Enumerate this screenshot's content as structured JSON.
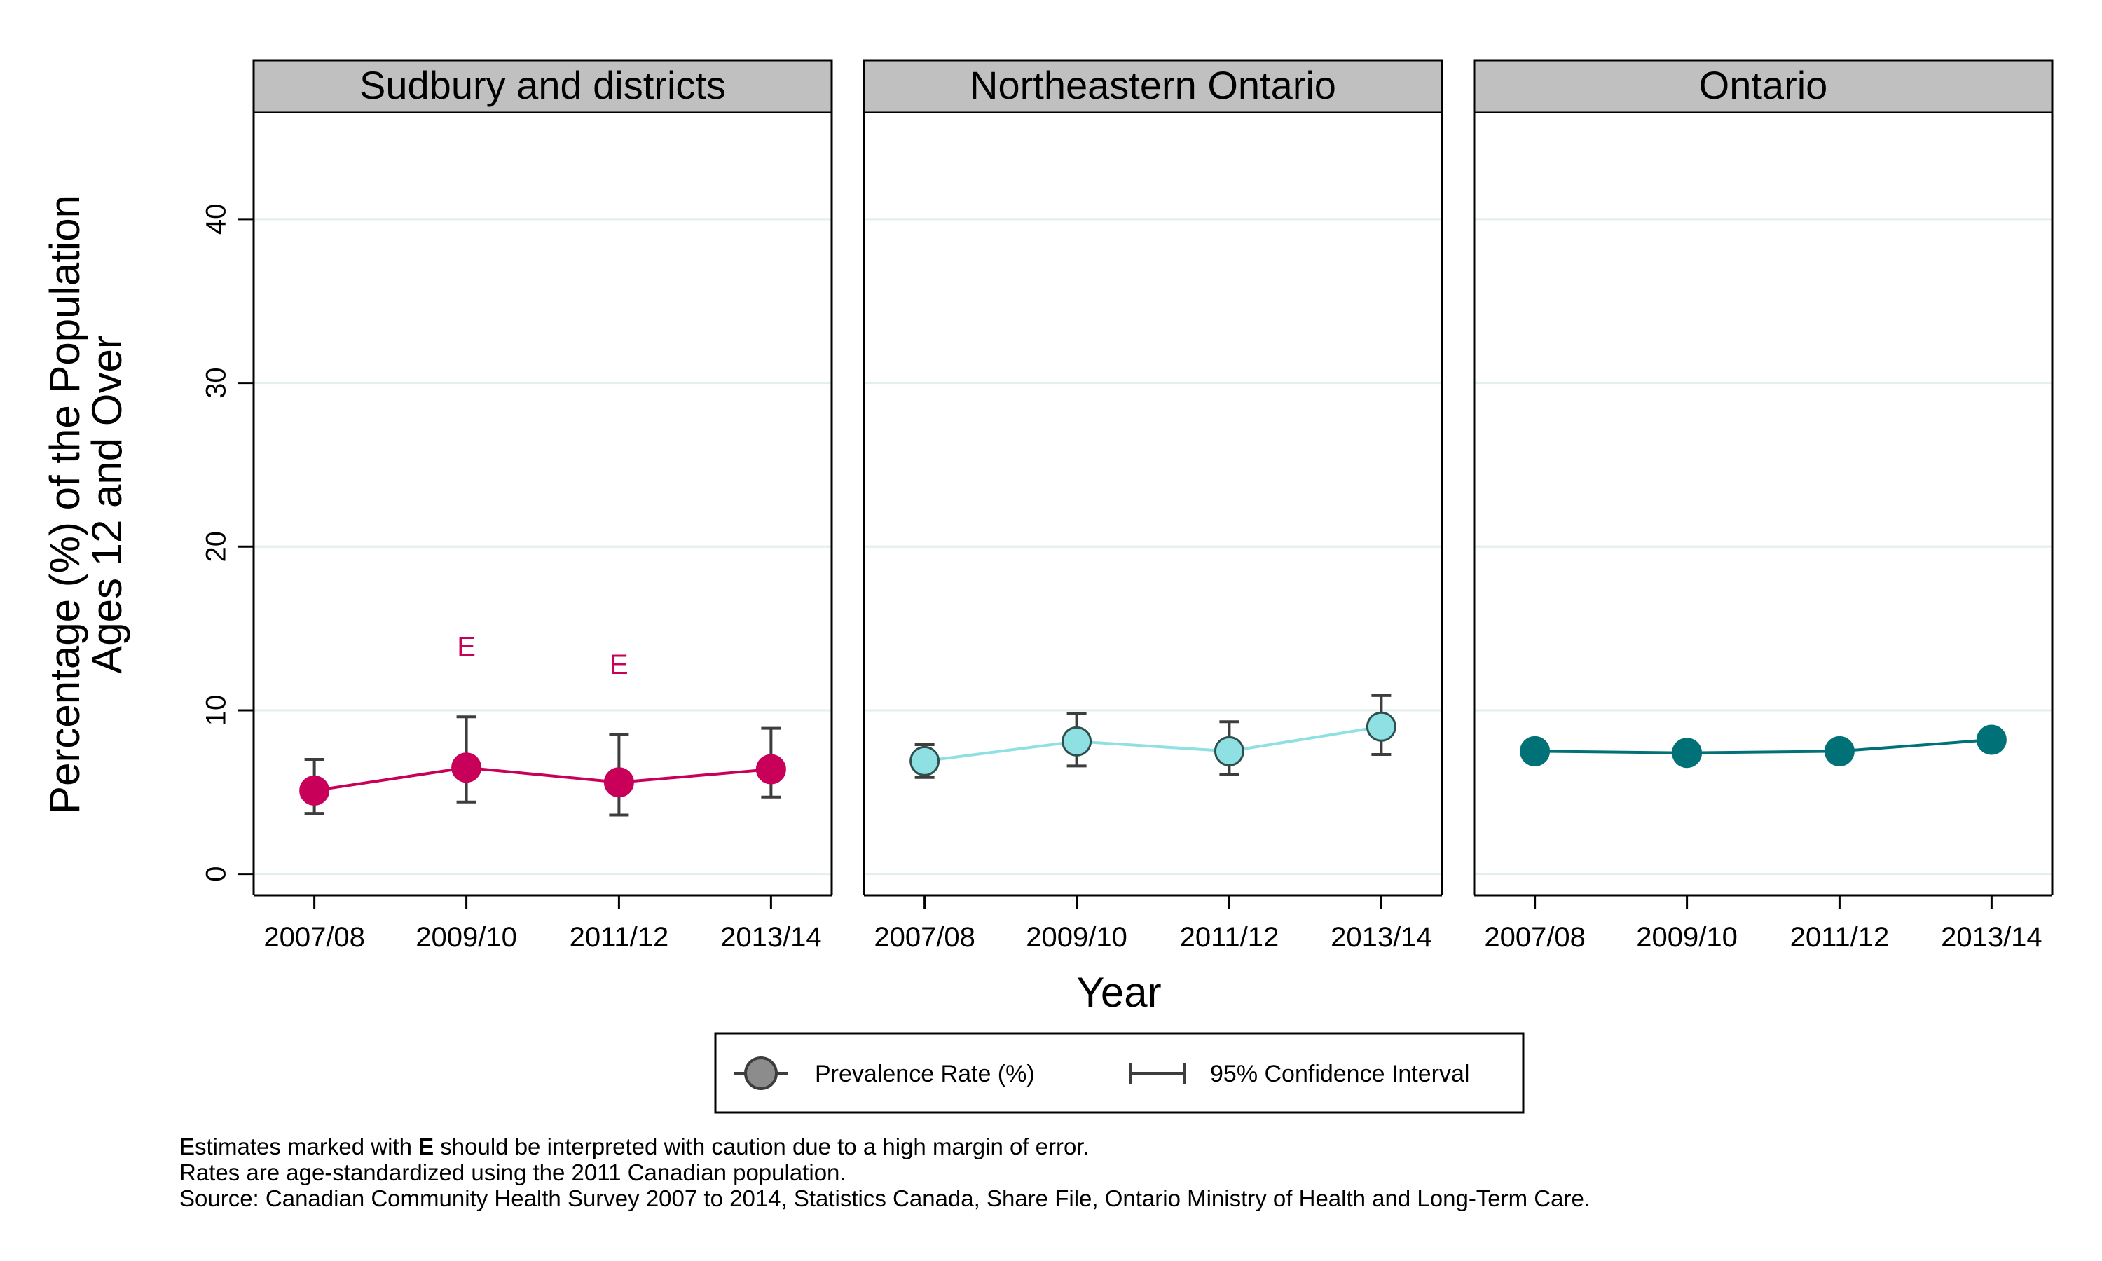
{
  "chart_data": {
    "type": "line",
    "panels": [
      {
        "title": "Sudbury and districts",
        "color": "#c8005a",
        "series": [
          {
            "x": [
              "2007/08",
              "2009/10",
              "2011/12",
              "2013/14"
            ],
            "values": [
              5.1,
              6.5,
              5.6,
              6.4
            ],
            "ci_low": [
              3.7,
              4.4,
              3.6,
              4.7
            ],
            "ci_high": [
              7.0,
              9.6,
              8.5,
              8.9
            ],
            "flags": [
              "",
              "E",
              "E",
              ""
            ]
          }
        ]
      },
      {
        "title": "Northeastern Ontario",
        "color": "#8ee0e2",
        "series": [
          {
            "x": [
              "2007/08",
              "2009/10",
              "2011/12",
              "2013/14"
            ],
            "values": [
              6.9,
              8.1,
              7.5,
              9.0
            ],
            "ci_low": [
              5.9,
              6.6,
              6.1,
              7.3
            ],
            "ci_high": [
              7.9,
              9.8,
              9.3,
              10.9
            ],
            "flags": [
              "",
              "",
              "",
              ""
            ]
          }
        ]
      },
      {
        "title": "Ontario",
        "color": "#007277",
        "series": [
          {
            "x": [
              "2007/08",
              "2009/10",
              "2011/12",
              "2013/14"
            ],
            "values": [
              7.5,
              7.4,
              7.5,
              8.2
            ],
            "ci_low": [
              7.2,
              7.1,
              7.2,
              7.9
            ],
            "ci_high": [
              7.8,
              7.7,
              7.8,
              8.5
            ],
            "flags": [
              "",
              "",
              "",
              ""
            ]
          }
        ]
      }
    ],
    "ylabel_line1": "Percentage (%) of the Population",
    "ylabel_line2": "Ages 12 and Over",
    "xlabel": "Year",
    "ylim": [
      -1.3,
      46.5
    ],
    "yticks": [
      0,
      10,
      20,
      30,
      40
    ],
    "grid": true,
    "legend": {
      "placement": "bottom-center",
      "items": [
        "Prevalence Rate (%)",
        "95% Confidence Interval"
      ]
    }
  },
  "footnotes": {
    "line1_prefix": "Estimates marked with ",
    "line1_flag": "E",
    "line1_suffix": " should be interpreted with caution due to a high margin of error.",
    "line2": "Rates are age-standardized using the 2011 Canadian population.",
    "line3": "Source: Canadian Community Health Survey 2007 to 2014, Statistics Canada, Share File, Ontario Ministry of Health and Long-Term Care."
  }
}
